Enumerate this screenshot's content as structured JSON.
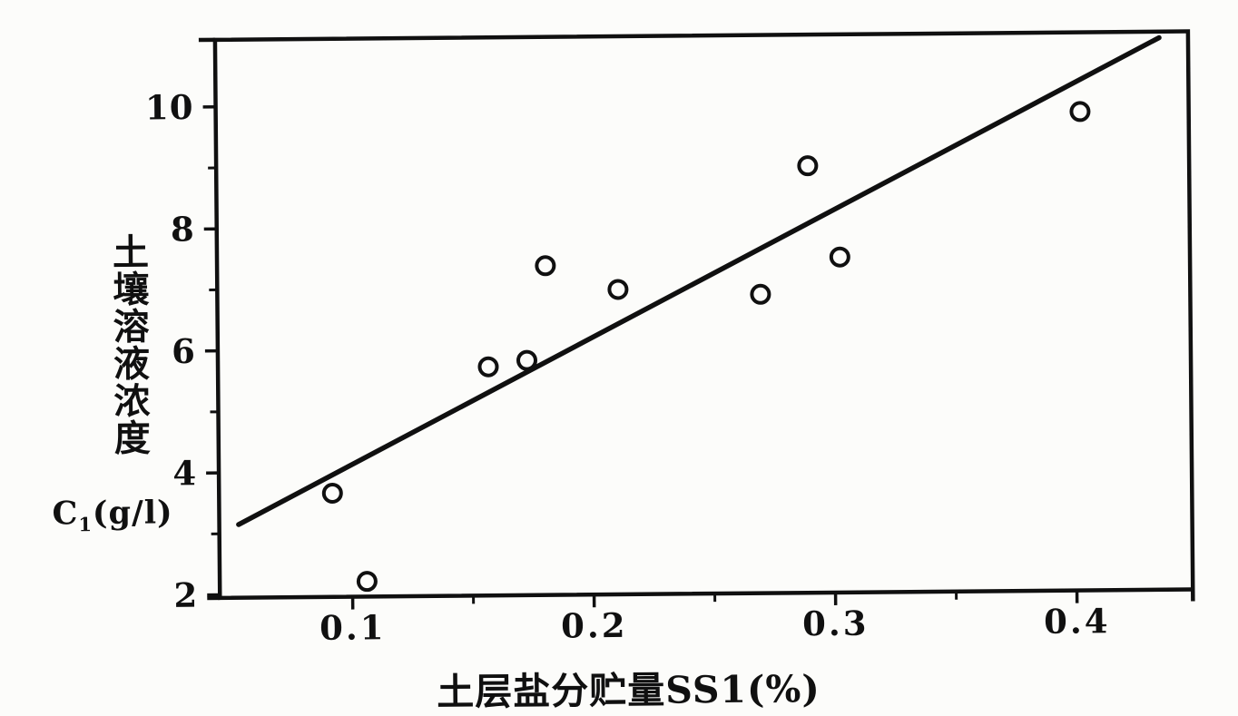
{
  "figure": {
    "paper_color": "#fcfcfa",
    "ink_color": "#101010"
  },
  "chart_data": {
    "type": "scatter",
    "title": "",
    "xlabel": "土层盐分贮量SS1(%)",
    "ylabel_vertical": "土壤溶液浓度",
    "ylabel_unit": {
      "symbol": "C",
      "subscript": "1",
      "unit": "(g/l)"
    },
    "xlim": [
      0.045,
      0.448
    ],
    "ylim": [
      1.95,
      11.1
    ],
    "grid": false,
    "legend": null,
    "marker": "open-circle",
    "x_major_ticks": [
      {
        "value": 0.1,
        "label": "0.1"
      },
      {
        "value": 0.2,
        "label": "0.2"
      },
      {
        "value": 0.3,
        "label": "0.3"
      },
      {
        "value": 0.4,
        "label": "0.4"
      }
    ],
    "x_minor_ticks": [
      0.15,
      0.25,
      0.35
    ],
    "y_major_ticks": [
      {
        "value": 2,
        "label": "2"
      },
      {
        "value": 4,
        "label": "4"
      },
      {
        "value": 6,
        "label": "6"
      },
      {
        "value": 8,
        "label": "8"
      },
      {
        "value": 10,
        "label": "10"
      }
    ],
    "y_minor_ticks": [
      3,
      5,
      7,
      9
    ],
    "points": [
      {
        "x": 0.092,
        "y": 3.65
      },
      {
        "x": 0.106,
        "y": 2.2
      },
      {
        "x": 0.157,
        "y": 5.7
      },
      {
        "x": 0.173,
        "y": 5.8
      },
      {
        "x": 0.181,
        "y": 7.35
      },
      {
        "x": 0.211,
        "y": 6.95
      },
      {
        "x": 0.27,
        "y": 6.85
      },
      {
        "x": 0.29,
        "y": 8.95
      },
      {
        "x": 0.303,
        "y": 7.45
      },
      {
        "x": 0.403,
        "y": 9.8
      }
    ],
    "trend_line": {
      "x1": 0.053,
      "y1": 3.15,
      "x2": 0.436,
      "y2": 11.0
    }
  }
}
